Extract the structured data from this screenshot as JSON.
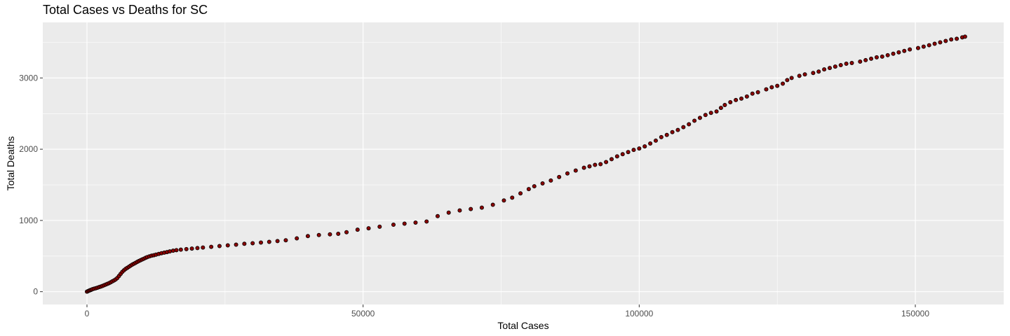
{
  "chart_data": {
    "type": "scatter",
    "title": "Total Cases vs Deaths for SC",
    "xlabel": "Total Cases",
    "ylabel": "Total Deaths",
    "xlim": [
      -8000,
      166000
    ],
    "ylim": [
      -180,
      3780
    ],
    "x_ticks": [
      0,
      50000,
      100000,
      150000
    ],
    "x_tick_labels": [
      "0",
      "50000",
      "100000",
      "150000"
    ],
    "y_ticks": [
      0,
      1000,
      2000,
      3000
    ],
    "y_tick_labels": [
      "0",
      "1000",
      "2000",
      "3000"
    ],
    "grid": true,
    "legend": "none",
    "colors": {
      "panel": "#ebebeb",
      "grid": "#ffffff",
      "point": "#8b0000",
      "point_outline": "#000000"
    },
    "points": [
      [
        0,
        0
      ],
      [
        200,
        8
      ],
      [
        400,
        15
      ],
      [
        600,
        22
      ],
      [
        800,
        28
      ],
      [
        1000,
        35
      ],
      [
        1300,
        42
      ],
      [
        1600,
        48
      ],
      [
        1900,
        56
      ],
      [
        2200,
        64
      ],
      [
        2500,
        72
      ],
      [
        2800,
        80
      ],
      [
        3100,
        90
      ],
      [
        3400,
        100
      ],
      [
        3700,
        110
      ],
      [
        4000,
        120
      ],
      [
        4300,
        132
      ],
      [
        4600,
        145
      ],
      [
        4900,
        158
      ],
      [
        5200,
        172
      ],
      [
        5500,
        192
      ],
      [
        5800,
        220
      ],
      [
        6100,
        250
      ],
      [
        6400,
        278
      ],
      [
        6700,
        300
      ],
      [
        7000,
        320
      ],
      [
        7300,
        335
      ],
      [
        7600,
        350
      ],
      [
        7900,
        365
      ],
      [
        8200,
        380
      ],
      [
        8500,
        392
      ],
      [
        8800,
        405
      ],
      [
        9100,
        418
      ],
      [
        9400,
        430
      ],
      [
        9700,
        442
      ],
      [
        10000,
        452
      ],
      [
        10300,
        463
      ],
      [
        10600,
        475
      ],
      [
        10900,
        485
      ],
      [
        11300,
        495
      ],
      [
        11700,
        505
      ],
      [
        12100,
        512
      ],
      [
        12500,
        520
      ],
      [
        13000,
        530
      ],
      [
        13500,
        540
      ],
      [
        14000,
        548
      ],
      [
        14500,
        556
      ],
      [
        15000,
        565
      ],
      [
        15600,
        575
      ],
      [
        16200,
        583
      ],
      [
        17000,
        590
      ],
      [
        18000,
        598
      ],
      [
        19000,
        605
      ],
      [
        20000,
        612
      ],
      [
        21000,
        620
      ],
      [
        22500,
        630
      ],
      [
        24000,
        640
      ],
      [
        25500,
        650
      ],
      [
        27000,
        660
      ],
      [
        28500,
        672
      ],
      [
        30000,
        680
      ],
      [
        31500,
        690
      ],
      [
        33000,
        700
      ],
      [
        34500,
        710
      ],
      [
        36000,
        722
      ],
      [
        38000,
        748
      ],
      [
        40000,
        780
      ],
      [
        42000,
        795
      ],
      [
        44000,
        805
      ],
      [
        45500,
        812
      ],
      [
        47000,
        835
      ],
      [
        49000,
        870
      ],
      [
        51000,
        890
      ],
      [
        53000,
        912
      ],
      [
        55500,
        940
      ],
      [
        57500,
        955
      ],
      [
        59500,
        970
      ],
      [
        61500,
        985
      ],
      [
        63500,
        1060
      ],
      [
        65500,
        1110
      ],
      [
        67500,
        1140
      ],
      [
        69500,
        1160
      ],
      [
        71500,
        1180
      ],
      [
        73500,
        1220
      ],
      [
        75500,
        1280
      ],
      [
        77000,
        1320
      ],
      [
        78500,
        1380
      ],
      [
        80000,
        1440
      ],
      [
        81000,
        1480
      ],
      [
        82500,
        1520
      ],
      [
        84000,
        1560
      ],
      [
        85500,
        1610
      ],
      [
        87000,
        1660
      ],
      [
        88500,
        1700
      ],
      [
        90000,
        1740
      ],
      [
        91000,
        1760
      ],
      [
        92000,
        1780
      ],
      [
        93000,
        1790
      ],
      [
        94000,
        1820
      ],
      [
        95000,
        1860
      ],
      [
        96000,
        1900
      ],
      [
        97000,
        1930
      ],
      [
        98000,
        1960
      ],
      [
        99000,
        1990
      ],
      [
        100000,
        2010
      ],
      [
        101000,
        2040
      ],
      [
        102000,
        2080
      ],
      [
        103000,
        2120
      ],
      [
        104000,
        2170
      ],
      [
        105000,
        2200
      ],
      [
        106000,
        2240
      ],
      [
        107000,
        2270
      ],
      [
        108000,
        2310
      ],
      [
        109000,
        2350
      ],
      [
        110000,
        2400
      ],
      [
        111000,
        2440
      ],
      [
        112000,
        2480
      ],
      [
        113000,
        2510
      ],
      [
        114000,
        2530
      ],
      [
        114800,
        2580
      ],
      [
        115500,
        2620
      ],
      [
        116500,
        2660
      ],
      [
        117500,
        2690
      ],
      [
        118500,
        2710
      ],
      [
        119500,
        2740
      ],
      [
        120500,
        2780
      ],
      [
        121500,
        2800
      ],
      [
        123000,
        2840
      ],
      [
        124000,
        2870
      ],
      [
        125000,
        2890
      ],
      [
        126000,
        2920
      ],
      [
        126800,
        2970
      ],
      [
        127600,
        3000
      ],
      [
        129000,
        3030
      ],
      [
        130000,
        3050
      ],
      [
        131500,
        3070
      ],
      [
        132500,
        3090
      ],
      [
        133500,
        3120
      ],
      [
        134500,
        3140
      ],
      [
        135500,
        3160
      ],
      [
        136500,
        3180
      ],
      [
        137500,
        3200
      ],
      [
        138500,
        3210
      ],
      [
        140000,
        3230
      ],
      [
        141000,
        3250
      ],
      [
        142000,
        3270
      ],
      [
        143000,
        3290
      ],
      [
        144000,
        3300
      ],
      [
        145000,
        3320
      ],
      [
        146000,
        3340
      ],
      [
        147000,
        3360
      ],
      [
        148000,
        3380
      ],
      [
        149000,
        3400
      ],
      [
        150500,
        3420
      ],
      [
        151500,
        3440
      ],
      [
        152500,
        3460
      ],
      [
        153500,
        3480
      ],
      [
        154500,
        3500
      ],
      [
        155500,
        3520
      ],
      [
        156500,
        3540
      ],
      [
        157500,
        3550
      ],
      [
        158500,
        3570
      ],
      [
        159000,
        3580
      ]
    ]
  }
}
